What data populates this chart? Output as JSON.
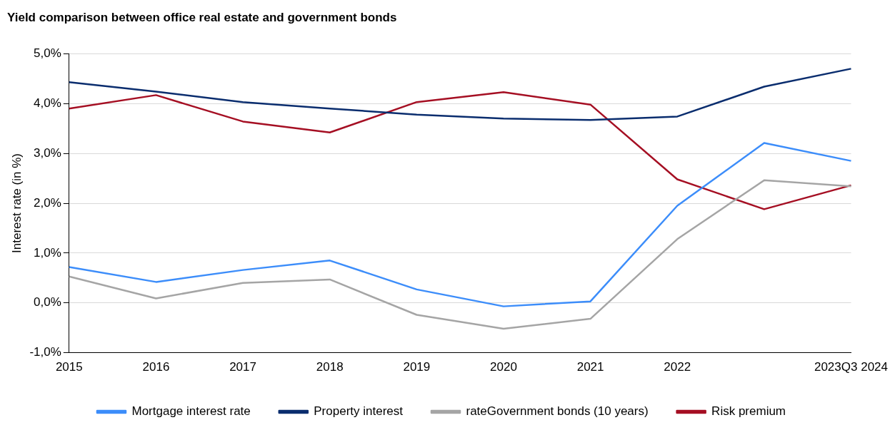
{
  "chart_data": {
    "type": "line",
    "title": "Yield comparison between office real estate and government bonds",
    "ylabel": "Interest rate (in %)",
    "categories": [
      "2015",
      "2016",
      "2017",
      "2018",
      "2019",
      "2020",
      "2021",
      "2022",
      null,
      "2023Q3 2024"
    ],
    "series": [
      {
        "name": "Mortgage interest rate",
        "color": "#3c8dfa",
        "values": [
          0.72,
          0.42,
          0.66,
          0.85,
          0.27,
          -0.07,
          0.03,
          1.95,
          3.21,
          2.85
        ]
      },
      {
        "name": "Property interest",
        "color": "#0a2d6e",
        "values": [
          4.43,
          4.24,
          4.03,
          3.9,
          3.78,
          3.7,
          3.67,
          3.74,
          4.34,
          4.7
        ]
      },
      {
        "name": "rateGovernment bonds (10 years)",
        "color": "#a5a5a5",
        "values": [
          0.53,
          0.09,
          0.4,
          0.47,
          -0.24,
          -0.52,
          -0.32,
          1.28,
          2.46,
          2.34
        ]
      },
      {
        "name": "Risk premium",
        "color": "#a50f23",
        "values": [
          3.9,
          4.17,
          3.64,
          3.42,
          4.03,
          4.23,
          3.98,
          2.48,
          1.88,
          2.36
        ]
      }
    ],
    "ylim": [
      -1,
      5
    ],
    "yticks": [
      {
        "value": -1,
        "label": "-1,0%"
      },
      {
        "value": 0,
        "label": "0,0%"
      },
      {
        "value": 1,
        "label": "1,0%"
      },
      {
        "value": 2,
        "label": "2,0%"
      },
      {
        "value": 3,
        "label": "3,0%"
      },
      {
        "value": 4,
        "label": "4,0%"
      },
      {
        "value": 5,
        "label": "5,0%"
      }
    ],
    "grid": "y",
    "legend": "bottom",
    "marker": "none",
    "line_style": "solid"
  }
}
